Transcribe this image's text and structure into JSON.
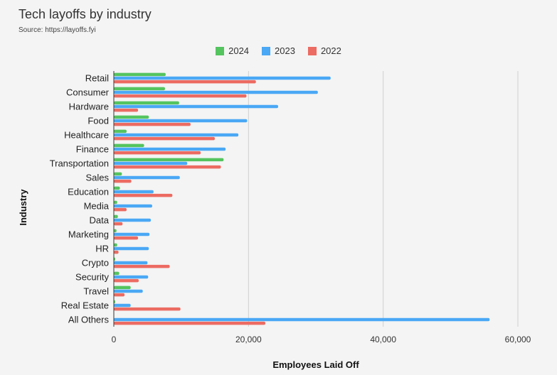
{
  "title": "Tech layoffs by industry",
  "subtitle": "Source: https://layoffs.fyi",
  "colors": {
    "2024": "#54c45e",
    "2023": "#4aa8f5",
    "2022": "#ec6b62"
  },
  "chart_data": {
    "type": "bar",
    "orientation": "horizontal",
    "title": "Tech layoffs by industry",
    "subtitle": "Source: https://layoffs.fyi",
    "xlabel": "Employees Laid Off",
    "ylabel": "Industry",
    "xlim": [
      0,
      60000
    ],
    "xticks": [
      0,
      20000,
      40000,
      60000
    ],
    "xtick_labels": [
      "0",
      "20,000",
      "40,000",
      "60,000"
    ],
    "grid": true,
    "legend_position": "top",
    "categories": [
      "Retail",
      "Consumer",
      "Hardware",
      "Food",
      "Healthcare",
      "Finance",
      "Transportation",
      "Sales",
      "Education",
      "Media",
      "Data",
      "Marketing",
      "HR",
      "Crypto",
      "Security",
      "Travel",
      "Real Estate",
      "All Others"
    ],
    "series": [
      {
        "name": "2024",
        "values": [
          7700,
          7600,
          9700,
          5200,
          1900,
          4500,
          16300,
          1200,
          900,
          500,
          600,
          400,
          500,
          200,
          800,
          2500,
          200,
          0
        ]
      },
      {
        "name": "2023",
        "values": [
          32200,
          30300,
          24400,
          19800,
          18500,
          16600,
          10900,
          9800,
          5900,
          5700,
          5500,
          5300,
          5200,
          5000,
          5100,
          4300,
          2500,
          55800
        ]
      },
      {
        "name": "2022",
        "values": [
          21100,
          19700,
          3600,
          11400,
          15000,
          12900,
          15900,
          2600,
          8700,
          1900,
          1300,
          3600,
          700,
          8300,
          3700,
          1600,
          9900,
          22500
        ]
      }
    ]
  }
}
